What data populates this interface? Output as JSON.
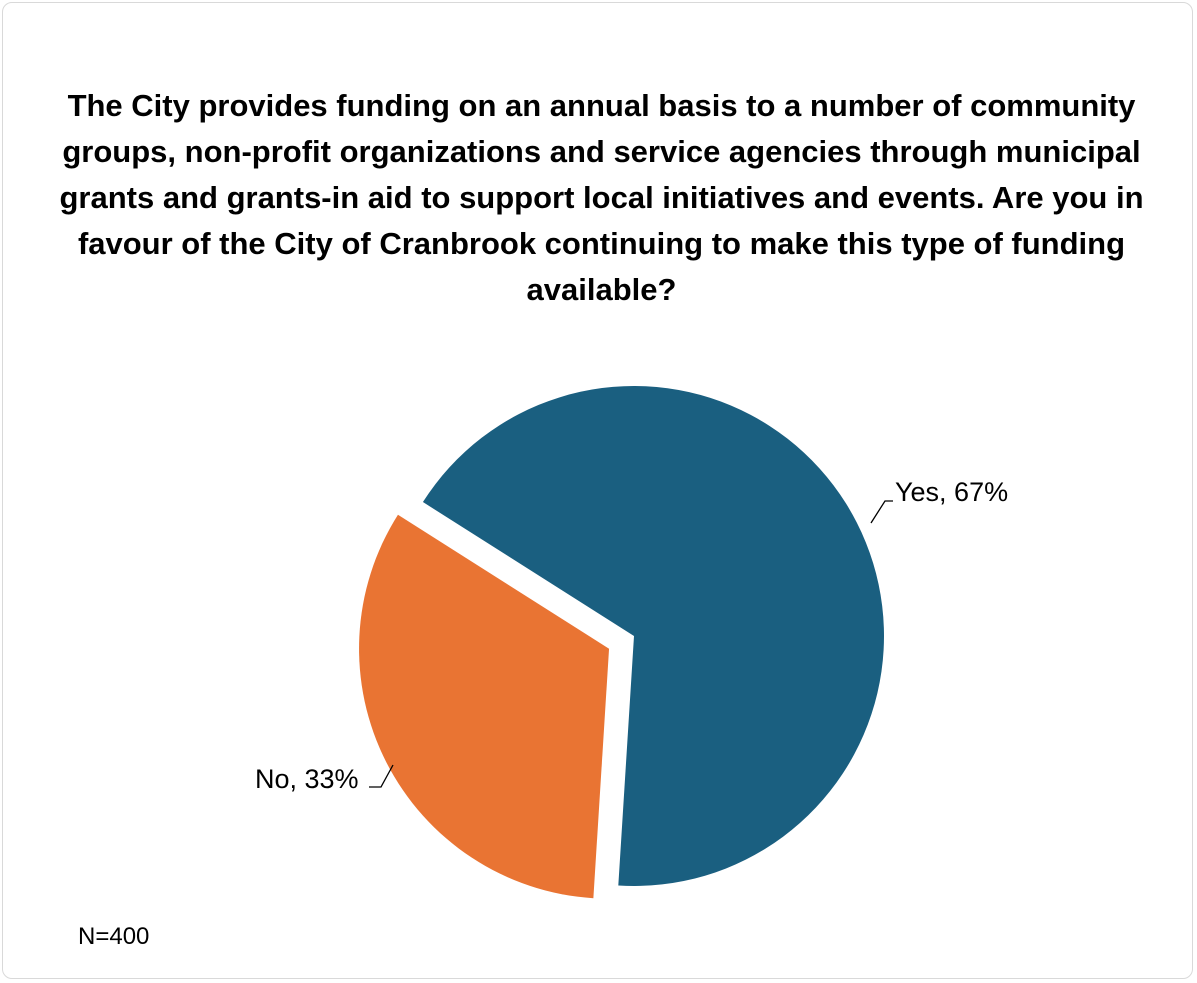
{
  "chart_data": {
    "type": "pie",
    "title": "The City provides funding on an annual basis to a number of community groups, non-profit organizations and service agencies through municipal grants and grants-in aid to support local initiatives and events.  Are you in favour of the City of Cranbrook continuing to make this type of funding available?",
    "categories": [
      "Yes",
      "No"
    ],
    "values": [
      67,
      33
    ],
    "unit": "%",
    "labels": [
      "Yes, 67%",
      "No, 33%"
    ],
    "colors": [
      "#1a5f80",
      "#e97433"
    ],
    "exploded": "No",
    "legend": "none",
    "note": "N=400"
  }
}
